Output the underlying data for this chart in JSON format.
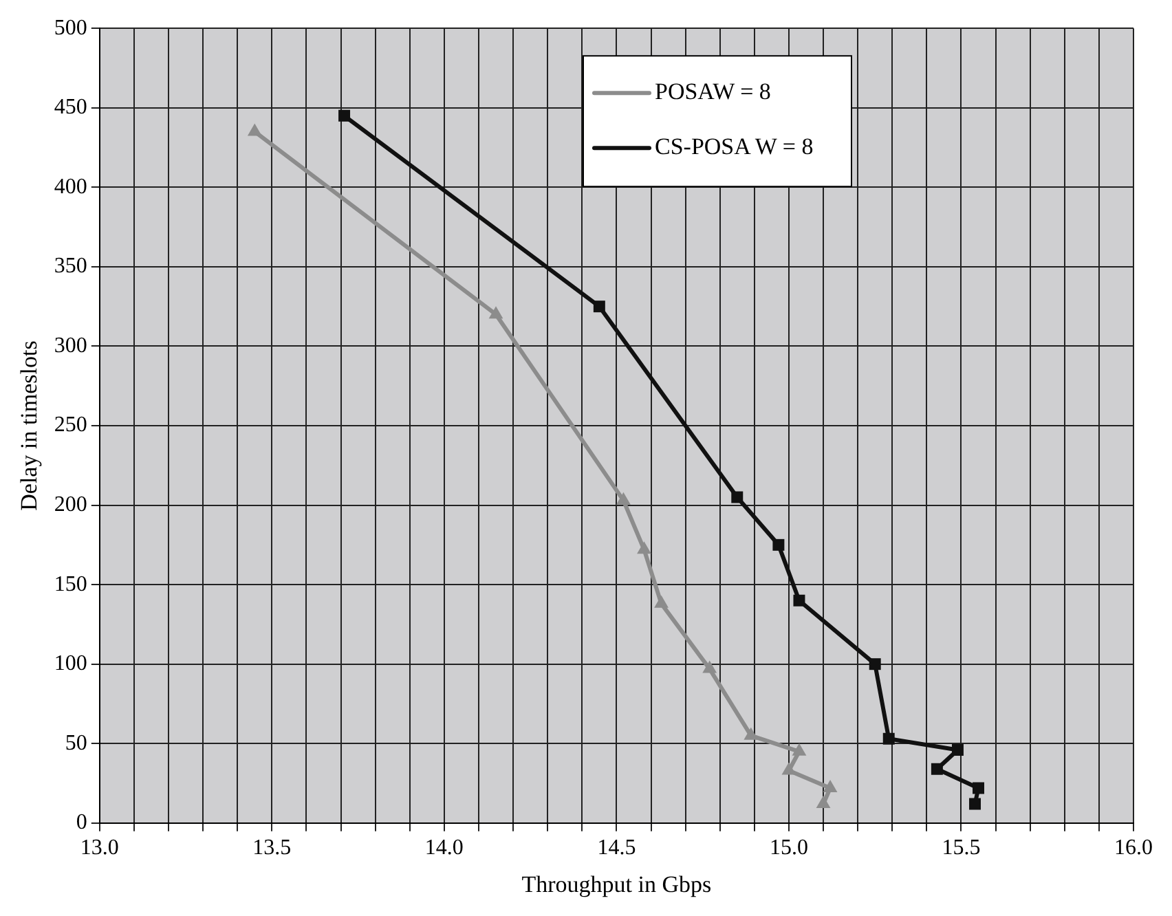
{
  "chart_data": {
    "type": "line",
    "xlabel": "Throughput in Gbps",
    "ylabel": "Delay in timeslots",
    "xlim": [
      13.0,
      16.0
    ],
    "ylim": [
      0,
      500
    ],
    "xticks": [
      {
        "value": 13.0,
        "label": "13.0"
      },
      {
        "value": 13.1,
        "label": null
      },
      {
        "value": 13.2,
        "label": null
      },
      {
        "value": 13.3,
        "label": null
      },
      {
        "value": 13.4,
        "label": null
      },
      {
        "value": 13.5,
        "label": "13.5"
      },
      {
        "value": 13.6,
        "label": null
      },
      {
        "value": 13.7,
        "label": null
      },
      {
        "value": 13.8,
        "label": null
      },
      {
        "value": 13.9,
        "label": null
      },
      {
        "value": 14.0,
        "label": "14.0"
      },
      {
        "value": 14.1,
        "label": null
      },
      {
        "value": 14.2,
        "label": null
      },
      {
        "value": 14.3,
        "label": null
      },
      {
        "value": 14.4,
        "label": null
      },
      {
        "value": 14.5,
        "label": "14.5"
      },
      {
        "value": 14.6,
        "label": null
      },
      {
        "value": 14.7,
        "label": null
      },
      {
        "value": 14.8,
        "label": null
      },
      {
        "value": 14.9,
        "label": null
      },
      {
        "value": 15.0,
        "label": "15.0"
      },
      {
        "value": 15.1,
        "label": null
      },
      {
        "value": 15.2,
        "label": null
      },
      {
        "value": 15.3,
        "label": null
      },
      {
        "value": 15.4,
        "label": null
      },
      {
        "value": 15.5,
        "label": "15.5"
      },
      {
        "value": 15.6,
        "label": null
      },
      {
        "value": 15.7,
        "label": null
      },
      {
        "value": 15.8,
        "label": null
      },
      {
        "value": 15.9,
        "label": null
      },
      {
        "value": 16.0,
        "label": "16.0"
      }
    ],
    "yticks": [
      0,
      50,
      100,
      150,
      200,
      250,
      300,
      350,
      400,
      450,
      500
    ],
    "grid": true,
    "legend": "top right",
    "series": [
      {
        "name": "POSAW = 8",
        "color": "#8c8c8c",
        "marker": "triangle",
        "x": [
          13.45,
          14.15,
          14.52,
          14.58,
          14.63,
          14.77,
          14.89,
          15.03,
          15.0,
          15.12,
          15.1
        ],
        "values": [
          435,
          320,
          203,
          172,
          138,
          97,
          55,
          45,
          33,
          22,
          12
        ]
      },
      {
        "name": "CS-POSA W = 8",
        "color": "#111111",
        "marker": "square",
        "x": [
          13.71,
          14.45,
          14.85,
          14.97,
          15.03,
          15.25,
          15.29,
          15.49,
          15.43,
          15.55,
          15.54
        ],
        "values": [
          445,
          325,
          205,
          175,
          140,
          100,
          53,
          46,
          34,
          22,
          12
        ]
      }
    ]
  }
}
